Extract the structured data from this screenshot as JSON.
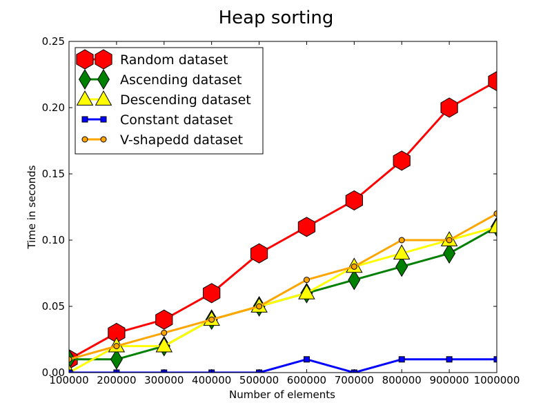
{
  "chart_data": {
    "type": "line",
    "title": "Heap sorting",
    "xlabel": "Number of elements",
    "ylabel": "Time in seconds",
    "x": [
      100000,
      200000,
      300000,
      400000,
      500000,
      600000,
      700000,
      800000,
      900000,
      1000000
    ],
    "xlim": [
      100000,
      1000000
    ],
    "ylim": [
      0,
      0.25
    ],
    "xticks": [
      "100000",
      "200000",
      "300000",
      "400000",
      "500000",
      "600000",
      "700000",
      "800000",
      "900000",
      "1000000"
    ],
    "yticks": [
      "0.00",
      "0.05",
      "0.10",
      "0.15",
      "0.20",
      "0.25"
    ],
    "grid": false,
    "legend_position": "top-left",
    "series": [
      {
        "name": "Random dataset",
        "color": "#ff0000",
        "line_color": "#ff0000",
        "marker": "hexagon",
        "values": [
          0.01,
          0.03,
          0.04,
          0.06,
          0.09,
          0.11,
          0.13,
          0.16,
          0.2,
          0.22
        ]
      },
      {
        "name": "Ascending dataset",
        "color": "#008000",
        "line_color": "#008000",
        "marker": "diamond",
        "values": [
          0.01,
          0.01,
          0.02,
          0.04,
          0.05,
          0.06,
          0.07,
          0.08,
          0.09,
          0.11
        ]
      },
      {
        "name": "Descending dataset",
        "color": "#ffff00",
        "line_color": "#ffff00",
        "marker": "triangle",
        "values": [
          0.0,
          0.02,
          0.02,
          0.04,
          0.05,
          0.06,
          0.08,
          0.09,
          0.1,
          0.11
        ]
      },
      {
        "name": "Constant dataset",
        "color": "#0000ff",
        "line_color": "#0000ff",
        "marker": "square",
        "values": [
          0.0,
          0.0,
          0.0,
          0.0,
          0.0,
          0.01,
          0.0,
          0.01,
          0.01,
          0.01
        ]
      },
      {
        "name": "V-shapedd dataset",
        "color": "#ffa500",
        "line_color": "#ffa500",
        "marker": "circle",
        "values": [
          0.01,
          0.02,
          0.03,
          0.04,
          0.05,
          0.07,
          0.08,
          0.1,
          0.1,
          0.12
        ]
      }
    ]
  }
}
